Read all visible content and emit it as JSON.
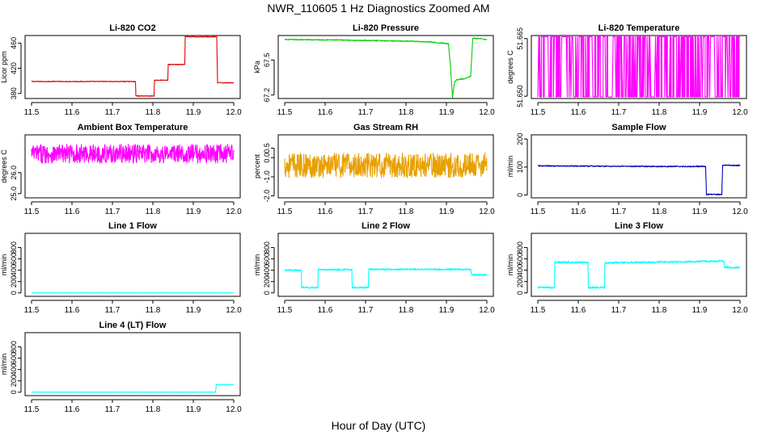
{
  "figure": {
    "title": "NWR_110605  1 Hz Diagnostics Zoomed AM",
    "xlabel": "Hour of Day (UTC)"
  },
  "chart_data": [
    {
      "type": "line",
      "title": "Li-820 CO2",
      "ylabel": "Licor ppm",
      "color": "#e00000",
      "xlim": [
        11.5,
        12.0
      ],
      "ylim": [
        372,
        472
      ],
      "x_ticks": [
        "11.5",
        "11.6",
        "11.7",
        "11.8",
        "11.9",
        "12.0"
      ],
      "y_ticks": [
        {
          "v": 380,
          "label": "380"
        },
        {
          "v": 420,
          "label": "420"
        },
        {
          "v": 460,
          "label": "460"
        }
      ],
      "noise": 0.6,
      "series": [
        {
          "name": "",
          "x": [
            11.5,
            11.757,
            11.758,
            11.803,
            11.804,
            11.837,
            11.838,
            11.879,
            11.88,
            11.958,
            11.96,
            12.0
          ],
          "y": [
            399,
            399,
            376,
            376,
            401,
            401,
            426,
            426,
            470,
            470,
            397,
            397
          ]
        }
      ]
    },
    {
      "type": "line",
      "title": "Li-820 Pressure",
      "ylabel": "kPa",
      "color": "#00d000",
      "xlim": [
        11.5,
        12.0
      ],
      "ylim": [
        67.17,
        67.71
      ],
      "x_ticks": [
        "11.5",
        "11.6",
        "11.7",
        "11.8",
        "11.9",
        "12.0"
      ],
      "y_ticks": [
        {
          "v": 67.2,
          "label": "67.2"
        },
        {
          "v": 67.5,
          "label": "67.5"
        }
      ],
      "noise": 0.004,
      "series": [
        {
          "name": "",
          "x": [
            11.5,
            11.6,
            11.7,
            11.8,
            11.86,
            11.905,
            11.91,
            11.915,
            11.92,
            11.925,
            11.945,
            11.96,
            11.965,
            11.98,
            12.0
          ],
          "y": [
            67.675,
            67.673,
            67.668,
            67.662,
            67.655,
            67.64,
            67.45,
            67.18,
            67.31,
            67.33,
            67.34,
            67.36,
            67.685,
            67.685,
            67.675
          ]
        }
      ]
    },
    {
      "type": "line",
      "title": "Li-820 Temperature",
      "ylabel": "degrees C",
      "color": "#ff00ff",
      "xlim": [
        11.5,
        12.0
      ],
      "ylim": [
        51.6494,
        51.6658
      ],
      "x_ticks": [
        "11.5",
        "11.6",
        "11.7",
        "11.8",
        "11.9",
        "12.0"
      ],
      "y_ticks": [
        {
          "v": 51.65,
          "label": "51.650"
        },
        {
          "v": 51.665,
          "label": "51.665"
        }
      ],
      "switch": {
        "low": 51.6498,
        "high": 51.6655
      },
      "series": [
        {
          "name": "",
          "x": [
            11.5,
            12.0
          ],
          "y": [
            51.6498,
            51.6655
          ]
        }
      ]
    },
    {
      "type": "line",
      "title": "Ambient Box Temperature",
      "ylabel": "degrees C",
      "color": "#ff00ff",
      "xlim": [
        11.5,
        12.0
      ],
      "ylim": [
        24.8,
        27.8
      ],
      "x_ticks": [
        "11.5",
        "11.6",
        "11.7",
        "11.8",
        "11.9",
        "12.0"
      ],
      "y_ticks": [
        {
          "v": 25.0,
          "label": "25.0"
        },
        {
          "v": 26.0,
          "label": "26.0"
        }
      ],
      "noise": 0.45,
      "series": [
        {
          "name": "",
          "x": [
            11.5,
            12.0
          ],
          "y": [
            26.9,
            26.9
          ]
        }
      ]
    },
    {
      "type": "line",
      "title": "Gas Stream RH",
      "ylabel": "percent",
      "color": "#e8a000",
      "xlim": [
        11.5,
        12.0
      ],
      "ylim": [
        -2.1,
        1.2
      ],
      "x_ticks": [
        "11.5",
        "11.6",
        "11.7",
        "11.8",
        "11.9",
        "12.0"
      ],
      "y_ticks": [
        {
          "v": -2.0,
          "label": "-2.0"
        },
        {
          "v": -1.0,
          "label": "-1.0"
        },
        {
          "v": 0.0,
          "label": "0.0"
        },
        {
          "v": 0.5,
          "label": "0.5"
        }
      ],
      "noise": 0.65,
      "series": [
        {
          "name": "",
          "x": [
            11.5,
            12.0
          ],
          "y": [
            -0.4,
            -0.4
          ]
        }
      ]
    },
    {
      "type": "line",
      "title": "Sample Flow",
      "ylabel": "ml/min",
      "color": "#0000c0",
      "xlim": [
        11.5,
        12.0
      ],
      "ylim": [
        -10,
        215
      ],
      "x_ticks": [
        "11.5",
        "11.6",
        "11.7",
        "11.8",
        "11.9",
        "12.0"
      ],
      "y_ticks": [
        {
          "v": 0,
          "label": "0"
        },
        {
          "v": 100,
          "label": "100"
        },
        {
          "v": 200,
          "label": "200"
        }
      ],
      "noise": 2,
      "series": [
        {
          "name": "",
          "x": [
            11.5,
            11.8,
            11.915,
            11.917,
            11.955,
            11.957,
            12.0
          ],
          "y": [
            104,
            102,
            102,
            2,
            2,
            106,
            106
          ]
        }
      ]
    },
    {
      "type": "line",
      "title": "Line 1 Flow",
      "ylabel": "ml/min",
      "color": "#00ffff",
      "xlim": [
        11.5,
        12.0
      ],
      "ylim": [
        -60,
        1050
      ],
      "x_ticks": [
        "11.5",
        "11.6",
        "11.7",
        "11.8",
        "11.9",
        "12.0"
      ],
      "y_ticks": [
        {
          "v": 0,
          "label": "0"
        },
        {
          "v": 200,
          "label": "200"
        },
        {
          "v": 400,
          "label": "400"
        },
        {
          "v": 600,
          "label": "600"
        },
        {
          "v": 800,
          "label": "800"
        }
      ],
      "noise": 1,
      "series": [
        {
          "name": "",
          "x": [
            11.5,
            12.0
          ],
          "y": [
            0,
            0
          ]
        }
      ]
    },
    {
      "type": "line",
      "title": "Line 2 Flow",
      "ylabel": "ml/min",
      "color": "#00ffff",
      "xlim": [
        11.5,
        12.0
      ],
      "ylim": [
        -60,
        1050
      ],
      "x_ticks": [
        "11.5",
        "11.6",
        "11.7",
        "11.8",
        "11.9",
        "12.0"
      ],
      "y_ticks": [
        {
          "v": 0,
          "label": "0"
        },
        {
          "v": 200,
          "label": "200"
        },
        {
          "v": 400,
          "label": "400"
        },
        {
          "v": 600,
          "label": "600"
        },
        {
          "v": 800,
          "label": "800"
        }
      ],
      "noise": 14,
      "series": [
        {
          "name": "",
          "x": [
            11.5,
            11.541,
            11.542,
            11.582,
            11.583,
            11.666,
            11.667,
            11.707,
            11.708,
            11.96,
            11.962,
            12.0
          ],
          "y": [
            400,
            400,
            95,
            95,
            410,
            410,
            95,
            95,
            415,
            415,
            320,
            320
          ]
        }
      ]
    },
    {
      "type": "line",
      "title": "Line 3 Flow",
      "ylabel": "ml/min",
      "color": "#00ffff",
      "xlim": [
        11.5,
        12.0
      ],
      "ylim": [
        -60,
        1050
      ],
      "x_ticks": [
        "11.5",
        "11.6",
        "11.7",
        "11.8",
        "11.9",
        "12.0"
      ],
      "y_ticks": [
        {
          "v": 0,
          "label": "0"
        },
        {
          "v": 200,
          "label": "200"
        },
        {
          "v": 400,
          "label": "400"
        },
        {
          "v": 600,
          "label": "600"
        },
        {
          "v": 800,
          "label": "800"
        }
      ],
      "noise": 16,
      "series": [
        {
          "name": "",
          "x": [
            11.5,
            11.541,
            11.542,
            11.624,
            11.625,
            11.665,
            11.666,
            11.96,
            11.962,
            12.0
          ],
          "y": [
            95,
            95,
            540,
            540,
            95,
            95,
            530,
            560,
            450,
            450
          ]
        }
      ]
    },
    {
      "type": "line",
      "title": "Line 4 (LT) Flow",
      "ylabel": "ml/min",
      "color": "#00ffff",
      "xlim": [
        11.5,
        12.0
      ],
      "ylim": [
        -60,
        1050
      ],
      "x_ticks": [
        "11.5",
        "11.6",
        "11.7",
        "11.8",
        "11.9",
        "12.0"
      ],
      "y_ticks": [
        {
          "v": 0,
          "label": "0"
        },
        {
          "v": 200,
          "label": "200"
        },
        {
          "v": 400,
          "label": "400"
        },
        {
          "v": 600,
          "label": "600"
        },
        {
          "v": 800,
          "label": "800"
        }
      ],
      "noise": 2,
      "series": [
        {
          "name": "",
          "x": [
            11.5,
            11.955,
            11.957,
            12.0
          ],
          "y": [
            2,
            2,
            135,
            135
          ]
        }
      ]
    }
  ]
}
